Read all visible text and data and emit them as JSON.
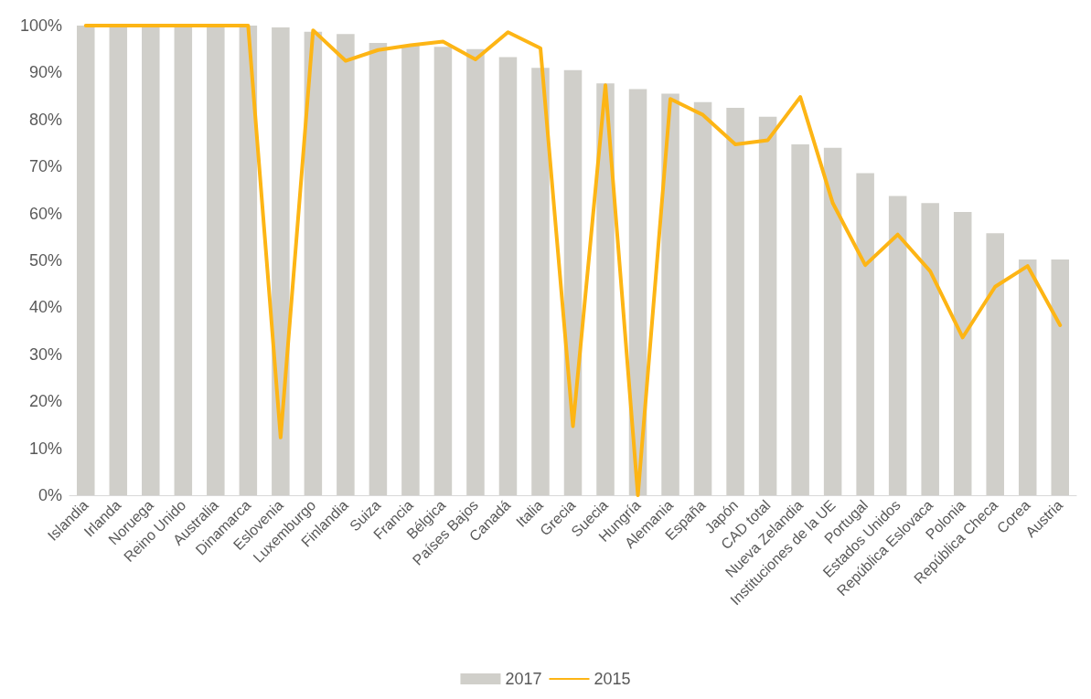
{
  "chart_data": {
    "type": "bar",
    "categories": [
      "Islandia",
      "Irlanda",
      "Noruega",
      "Reino Unido",
      "Australia",
      "Dinamarca",
      "Eslovenia",
      "Luxemburgo",
      "Finlandia",
      "Suiza",
      "Francia",
      "Bélgica",
      "Países Bajos",
      "Canadá",
      "Italia",
      "Grecia",
      "Suecia",
      "Hungría",
      "Alemania",
      "España",
      "Japón",
      "CAD total",
      "Nueva Zelandia",
      "Instituciones de la UE",
      "Portugal",
      "Estados Unidos",
      "República Eslovaca",
      "Polonia",
      "República Checa",
      "Corea",
      "Austria"
    ],
    "series": [
      {
        "name": "2017",
        "color": "#d0cfca",
        "values": [
          100,
          100,
          100,
          100,
          100,
          100,
          99.6,
          98.7,
          98.2,
          96.3,
          95.7,
          95.5,
          95,
          93.3,
          91,
          90.5,
          87.7,
          86.5,
          85.5,
          83.7,
          82.5,
          80.6,
          74.7,
          74,
          68.6,
          63.7,
          62.2,
          60.3,
          55.8,
          50.2,
          50.2
        ]
      },
      {
        "name": "2015",
        "type": "line",
        "color": "#fdb515",
        "values": [
          100,
          100,
          100,
          100,
          100,
          100,
          12.3,
          99,
          92.5,
          94.8,
          95.8,
          96.6,
          92.8,
          98.6,
          95.2,
          14.7,
          87.3,
          0,
          84.4,
          81,
          74.7,
          75.6,
          84.8,
          62.2,
          49,
          55.5,
          47.7,
          33.6,
          44.4,
          48.8,
          36.2
        ]
      }
    ],
    "ylim": [
      0,
      100
    ],
    "yticks": [
      {
        "value": 0,
        "label": "0%"
      },
      {
        "value": 10,
        "label": "10%"
      },
      {
        "value": 20,
        "label": "20%"
      },
      {
        "value": 30,
        "label": "30%"
      },
      {
        "value": 40,
        "label": "40%"
      },
      {
        "value": 50,
        "label": "50%"
      },
      {
        "value": 60,
        "label": "60%"
      },
      {
        "value": 70,
        "label": "70%"
      },
      {
        "value": 80,
        "label": "80%"
      },
      {
        "value": 90,
        "label": "90%"
      },
      {
        "value": 100,
        "label": "100%"
      }
    ],
    "grid": false,
    "legend": "bottom",
    "marker": "none",
    "line_style": "solid"
  }
}
